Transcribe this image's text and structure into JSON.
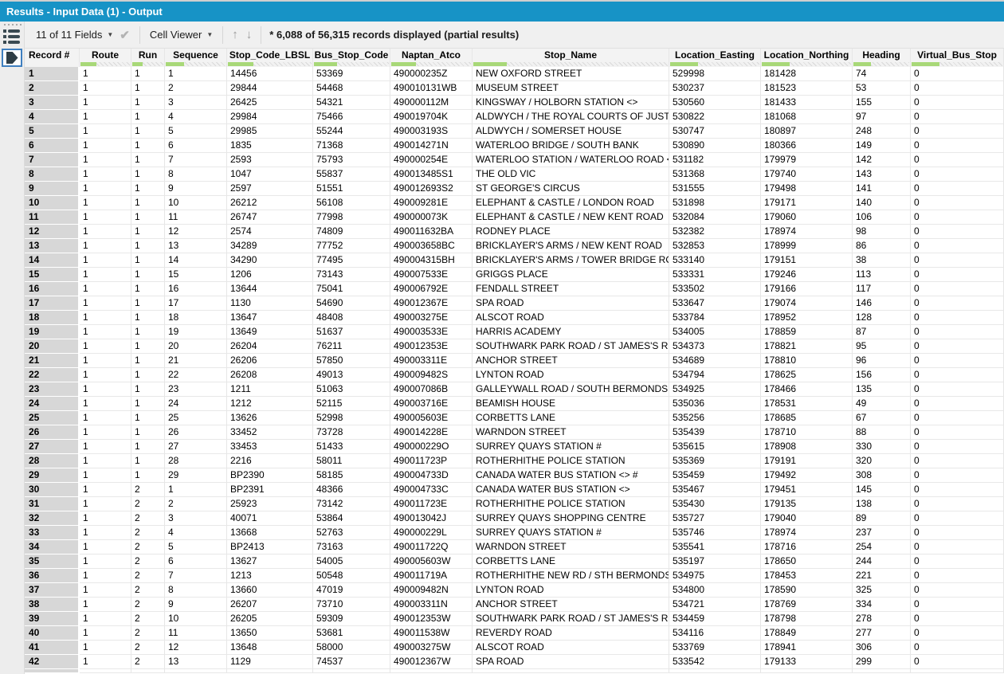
{
  "title_bar": {
    "title": "Results - Input Data (1) - Output"
  },
  "toolbar": {
    "fields_dropdown": "11 of 11 Fields",
    "cell_viewer_dropdown": "Cell Viewer",
    "records_status": "* 6,088 of 56,315 records displayed (partial results)"
  },
  "icons": {
    "rail": [
      "drag-handle-dots",
      "field-list-icon",
      "output-anchor-icon"
    ],
    "toolbar": [
      "dropdown-caret-icon",
      "checkmark-icon",
      "dropdown-caret-icon",
      "up-arrow-icon",
      "down-arrow-icon"
    ]
  },
  "colors": {
    "title_bar_bg": "#1793c6",
    "quality_green": "#a8d878",
    "record_gutter_bg": "#d7d7d7"
  },
  "table": {
    "columns": [
      "Record #",
      "Route",
      "Run",
      "Sequence",
      "Stop_Code_LBSL",
      "Bus_Stop_Code",
      "Naptan_Atco",
      "Stop_Name",
      "Location_Easting",
      "Location_Northing",
      "Heading",
      "Virtual_Bus_Stop"
    ],
    "rows": [
      [
        "1",
        "1",
        "1",
        "1",
        "14456",
        "53369",
        "490000235Z",
        "NEW OXFORD STREET",
        "529998",
        "181428",
        "74",
        "0"
      ],
      [
        "2",
        "1",
        "1",
        "2",
        "29844",
        "54468",
        "490010131WB",
        "MUSEUM STREET",
        "530237",
        "181523",
        "53",
        "0"
      ],
      [
        "3",
        "1",
        "1",
        "3",
        "26425",
        "54321",
        "490000112M",
        "KINGSWAY / HOLBORN STATION <>",
        "530560",
        "181433",
        "155",
        "0"
      ],
      [
        "4",
        "1",
        "1",
        "4",
        "29984",
        "75466",
        "490019704K",
        "ALDWYCH / THE ROYAL COURTS OF JUSTICE",
        "530822",
        "181068",
        "97",
        "0"
      ],
      [
        "5",
        "1",
        "1",
        "5",
        "29985",
        "55244",
        "490003193S",
        "ALDWYCH / SOMERSET HOUSE",
        "530747",
        "180897",
        "248",
        "0"
      ],
      [
        "6",
        "1",
        "1",
        "6",
        "1835",
        "71368",
        "490014271N",
        "WATERLOO BRIDGE / SOUTH BANK",
        "530890",
        "180366",
        "149",
        "0"
      ],
      [
        "7",
        "1",
        "1",
        "7",
        "2593",
        "75793",
        "490000254E",
        "WATERLOO STATION / WATERLOO ROAD <> #",
        "531182",
        "179979",
        "142",
        "0"
      ],
      [
        "8",
        "1",
        "1",
        "8",
        "1047",
        "55837",
        "490013485S1",
        "THE OLD VIC",
        "531368",
        "179740",
        "143",
        "0"
      ],
      [
        "9",
        "1",
        "1",
        "9",
        "2597",
        "51551",
        "490012693S2",
        "ST GEORGE'S CIRCUS",
        "531555",
        "179498",
        "141",
        "0"
      ],
      [
        "10",
        "1",
        "1",
        "10",
        "26212",
        "56108",
        "490009281E",
        "ELEPHANT & CASTLE / LONDON ROAD",
        "531898",
        "179171",
        "140",
        "0"
      ],
      [
        "11",
        "1",
        "1",
        "11",
        "26747",
        "77998",
        "490000073K",
        "ELEPHANT & CASTLE / NEW KENT ROAD",
        "532084",
        "179060",
        "106",
        "0"
      ],
      [
        "12",
        "1",
        "1",
        "12",
        "2574",
        "74809",
        "490011632BA",
        "RODNEY PLACE",
        "532382",
        "178974",
        "98",
        "0"
      ],
      [
        "13",
        "1",
        "1",
        "13",
        "34289",
        "77752",
        "490003658BC",
        "BRICKLAYER'S ARMS / NEW KENT ROAD",
        "532853",
        "178999",
        "86",
        "0"
      ],
      [
        "14",
        "1",
        "1",
        "14",
        "34290",
        "77495",
        "490004315BH",
        "BRICKLAYER'S ARMS / TOWER BRIDGE ROAD",
        "533140",
        "179151",
        "38",
        "0"
      ],
      [
        "15",
        "1",
        "1",
        "15",
        "1206",
        "73143",
        "490007533E",
        "GRIGGS PLACE",
        "533331",
        "179246",
        "113",
        "0"
      ],
      [
        "16",
        "1",
        "1",
        "16",
        "13644",
        "75041",
        "490006792E",
        "FENDALL STREET",
        "533502",
        "179166",
        "117",
        "0"
      ],
      [
        "17",
        "1",
        "1",
        "17",
        "1130",
        "54690",
        "490012367E",
        "SPA ROAD",
        "533647",
        "179074",
        "146",
        "0"
      ],
      [
        "18",
        "1",
        "1",
        "18",
        "13647",
        "48408",
        "490003275E",
        "ALSCOT ROAD",
        "533784",
        "178952",
        "128",
        "0"
      ],
      [
        "19",
        "1",
        "1",
        "19",
        "13649",
        "51637",
        "490003533E",
        "HARRIS ACADEMY",
        "534005",
        "178859",
        "87",
        "0"
      ],
      [
        "20",
        "1",
        "1",
        "20",
        "26204",
        "76211",
        "490012353E",
        "SOUTHWARK PARK ROAD / ST JAMES'S ROAD",
        "534373",
        "178821",
        "95",
        "0"
      ],
      [
        "21",
        "1",
        "1",
        "21",
        "26206",
        "57850",
        "490003311E",
        "ANCHOR STREET",
        "534689",
        "178810",
        "96",
        "0"
      ],
      [
        "22",
        "1",
        "1",
        "22",
        "26208",
        "49013",
        "490009482S",
        "LYNTON ROAD",
        "534794",
        "178625",
        "156",
        "0"
      ],
      [
        "23",
        "1",
        "1",
        "23",
        "1211",
        "51063",
        "490007086B",
        "GALLEYWALL ROAD / SOUTH BERMONDSEY ST...",
        "534925",
        "178466",
        "135",
        "0"
      ],
      [
        "24",
        "1",
        "1",
        "24",
        "1212",
        "52115",
        "490003716E",
        "BEAMISH HOUSE",
        "535036",
        "178531",
        "49",
        "0"
      ],
      [
        "25",
        "1",
        "1",
        "25",
        "13626",
        "52998",
        "490005603E",
        "CORBETTS LANE",
        "535256",
        "178685",
        "67",
        "0"
      ],
      [
        "26",
        "1",
        "1",
        "26",
        "33452",
        "73728",
        "490014228E",
        "WARNDON STREET",
        "535439",
        "178710",
        "88",
        "0"
      ],
      [
        "27",
        "1",
        "1",
        "27",
        "33453",
        "51433",
        "490000229O",
        "SURREY QUAYS STATION #",
        "535615",
        "178908",
        "330",
        "0"
      ],
      [
        "28",
        "1",
        "1",
        "28",
        "2216",
        "58011",
        "490011723P",
        "ROTHERHITHE POLICE STATION",
        "535369",
        "179191",
        "320",
        "0"
      ],
      [
        "29",
        "1",
        "1",
        "29",
        "BP2390",
        "58185",
        "490004733D",
        "CANADA WATER BUS STATION <> #",
        "535459",
        "179492",
        "308",
        "0"
      ],
      [
        "30",
        "1",
        "2",
        "1",
        "BP2391",
        "48366",
        "490004733C",
        "CANADA WATER BUS STATION <>",
        "535467",
        "179451",
        "145",
        "0"
      ],
      [
        "31",
        "1",
        "2",
        "2",
        "25923",
        "73142",
        "490011723E",
        "ROTHERHITHE POLICE STATION",
        "535430",
        "179135",
        "138",
        "0"
      ],
      [
        "32",
        "1",
        "2",
        "3",
        "40071",
        "53864",
        "490013042J",
        "SURREY QUAYS SHOPPING CENTRE",
        "535727",
        "179040",
        "89",
        "0"
      ],
      [
        "33",
        "1",
        "2",
        "4",
        "13668",
        "52763",
        "490000229L",
        "SURREY QUAYS STATION #",
        "535746",
        "178974",
        "237",
        "0"
      ],
      [
        "34",
        "1",
        "2",
        "5",
        "BP2413",
        "73163",
        "490011722Q",
        "WARNDON STREET",
        "535541",
        "178716",
        "254",
        "0"
      ],
      [
        "35",
        "1",
        "2",
        "6",
        "13627",
        "54005",
        "490005603W",
        "CORBETTS LANE",
        "535197",
        "178650",
        "244",
        "0"
      ],
      [
        "36",
        "1",
        "2",
        "7",
        "1213",
        "50548",
        "490011719A",
        "ROTHERHITHE NEW RD / STH BERMONDSEY ST...",
        "534975",
        "178453",
        "221",
        "0"
      ],
      [
        "37",
        "1",
        "2",
        "8",
        "13660",
        "47019",
        "490009482N",
        "LYNTON ROAD",
        "534800",
        "178590",
        "325",
        "0"
      ],
      [
        "38",
        "1",
        "2",
        "9",
        "26207",
        "73710",
        "490003311N",
        "ANCHOR STREET",
        "534721",
        "178769",
        "334",
        "0"
      ],
      [
        "39",
        "1",
        "2",
        "10",
        "26205",
        "59309",
        "490012353W",
        "SOUTHWARK PARK ROAD / ST JAMES'S ROAD",
        "534459",
        "178798",
        "278",
        "0"
      ],
      [
        "40",
        "1",
        "2",
        "11",
        "13650",
        "53681",
        "490011538W",
        "REVERDY ROAD",
        "534116",
        "178849",
        "277",
        "0"
      ],
      [
        "41",
        "1",
        "2",
        "12",
        "13648",
        "58000",
        "490003275W",
        "ALSCOT ROAD",
        "533769",
        "178941",
        "306",
        "0"
      ],
      [
        "42",
        "1",
        "2",
        "13",
        "1129",
        "74537",
        "490012367W",
        "SPA ROAD",
        "533542",
        "179133",
        "299",
        "0"
      ]
    ]
  }
}
